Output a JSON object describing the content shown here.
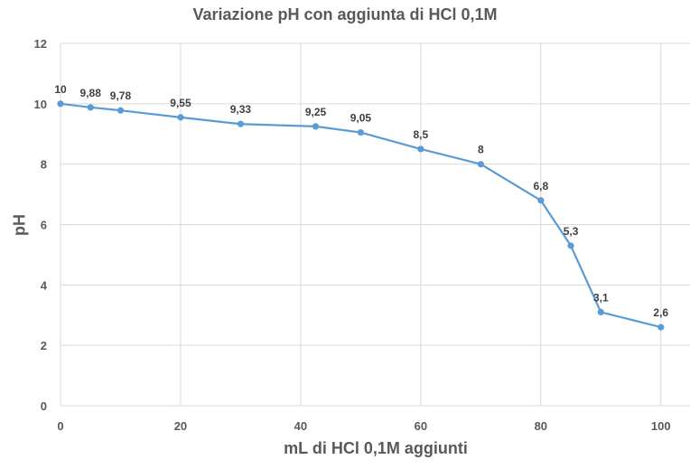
{
  "chart_data": {
    "type": "line",
    "title": "Variazione pH con aggiunta di HCl 0,1M",
    "xlabel": "mL di HCl 0,1M aggiunti",
    "ylabel": "pH",
    "xlim": [
      0,
      105
    ],
    "ylim": [
      0,
      12
    ],
    "x_ticks": [
      0,
      20,
      40,
      60,
      80,
      100
    ],
    "y_ticks": [
      0,
      2,
      4,
      6,
      8,
      10,
      12
    ],
    "grid": true,
    "line_color": "#5B9BD5",
    "series": [
      {
        "name": "pH",
        "x": [
          0,
          5,
          10,
          20,
          30,
          42.5,
          50,
          60,
          70,
          80,
          85,
          90,
          100
        ],
        "y": [
          10,
          9.88,
          9.78,
          9.55,
          9.33,
          9.25,
          9.05,
          8.5,
          8,
          6.8,
          5.3,
          3.1,
          2.6
        ],
        "labels": [
          "10",
          "9,88",
          "9,78",
          "9,55",
          "9,33",
          "9,25",
          "9,05",
          "8,5",
          "8",
          "6,8",
          "5,3",
          "3,1",
          "2,6"
        ]
      }
    ]
  }
}
